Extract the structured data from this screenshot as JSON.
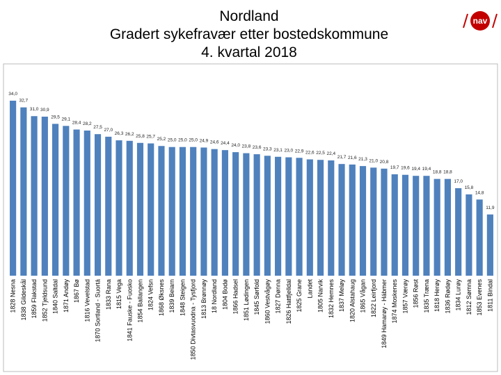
{
  "chart_data": {
    "type": "bar",
    "title_lines": [
      "Nordland",
      "Gradert sykefravær etter bostedskommune",
      "4. kvartal 2018"
    ],
    "logo": "nav",
    "color": "#4f81bd",
    "categories": [
      "1828 Nesna",
      "1838 Gildeskål",
      "1859 Flakstad",
      "1852 Tjeldsund",
      "1840 Saltdal",
      "1871 Andøy",
      "1867 Bø",
      "1816 Vevelstad",
      "1870 Sortland - Suortá",
      "1833 Rana",
      "1815 Vega",
      "1841 Fauske - Fuosko",
      "1854 Ballangen",
      "1824 Vefsn",
      "1868 Øksnes",
      "1839 Beiarn",
      "1848 Steigen",
      "1850 Divtasvuodna - Tysfjord",
      "1813 Brønnøy",
      "18 Nordland",
      "1804 Bodø",
      "1866 Hadsel",
      "1851 Lødingen",
      "1845 Sørfold",
      "1860 Vestvågøy",
      "1827 Dønna",
      "1826 Hattfjelldal",
      "1825 Grane",
      "Landet",
      "1805 Narvik",
      "1832 Hemnes",
      "1837 Meløy",
      "1820 Alstahaug",
      "1865 Vågan",
      "1822 Leirfjord",
      "1849 Hamarøy - Hábmer",
      "1874 Moskenes",
      "1857 Værøy",
      "1856 Røst",
      "1835 Træna",
      "1818 Herøy",
      "1836 Rødøy",
      "1834 Lurøy",
      "1812 Sømna",
      "1853 Evenes",
      "1811 Bindal"
    ],
    "values": [
      34.0,
      32.7,
      31.0,
      30.9,
      29.5,
      29.1,
      28.4,
      28.2,
      27.5,
      27.0,
      26.3,
      26.2,
      25.8,
      25.7,
      25.2,
      25.0,
      25.0,
      25.0,
      24.9,
      24.6,
      24.4,
      24.0,
      23.8,
      23.6,
      23.3,
      23.1,
      23.0,
      22.9,
      22.6,
      22.5,
      22.4,
      21.7,
      21.6,
      21.3,
      21.0,
      20.8,
      19.7,
      19.6,
      19.4,
      19.4,
      18.8,
      18.8,
      17.0,
      15.8,
      14.8,
      11.9
    ],
    "value_labels": [
      "34,0",
      "32,7",
      "31,0",
      "30,9",
      "29,5",
      "29,1",
      "28,4",
      "28,2",
      "27,5",
      "27,0",
      "26,3",
      "26,2",
      "25,8",
      "25,7",
      "25,2",
      "25,0",
      "25,0",
      "25,0",
      "24,9",
      "24,6",
      "24,4",
      "24,0",
      "23,8",
      "23,6",
      "23,3",
      "23,1",
      "23,0",
      "22,9",
      "22,6",
      "22,5",
      "22,4",
      "21,7",
      "21,6",
      "21,3",
      "21,0",
      "20,8",
      "19,7",
      "19,6",
      "19,4",
      "19,4",
      "18,8",
      "18,8",
      "17,0",
      "15,8",
      "14,8",
      "11,9"
    ]
  }
}
